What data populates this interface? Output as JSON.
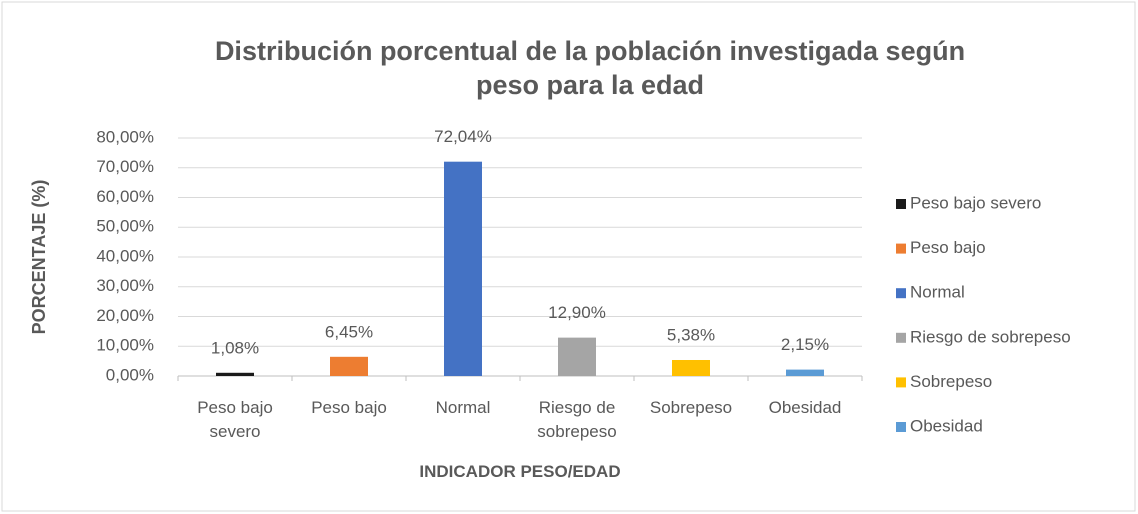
{
  "chart_data": {
    "type": "bar",
    "title": "Distribución porcentual de la población investigada según peso para la edad",
    "xlabel": "INDICADOR PESO/EDAD",
    "ylabel": "PORCENTAJE (%)",
    "categories": [
      "Peso bajo severo",
      "Peso bajo",
      "Normal",
      "Riesgo de sobrepeso",
      "Sobrepeso",
      "Obesidad"
    ],
    "values": [
      1.08,
      6.45,
      72.04,
      12.9,
      5.38,
      2.15
    ],
    "value_labels": [
      "1,08%",
      "6,45%",
      "72,04%",
      "12,90%",
      "5,38%",
      "2,15%"
    ],
    "colors": [
      "#1a1a1a",
      "#ed7d31",
      "#4472c4",
      "#a5a5a5",
      "#ffc000",
      "#5b9bd5"
    ],
    "ylim": [
      0,
      80
    ],
    "yticks": [
      {
        "value": 0,
        "label": "0,00%"
      },
      {
        "value": 10,
        "label": "10,00%"
      },
      {
        "value": 20,
        "label": "20,00%"
      },
      {
        "value": 30,
        "label": "30,00%"
      },
      {
        "value": 40,
        "label": "40,00%"
      },
      {
        "value": 50,
        "label": "50,00%"
      },
      {
        "value": 60,
        "label": "60,00%"
      },
      {
        "value": 70,
        "label": "70,00%"
      },
      {
        "value": 80,
        "label": "80,00%"
      }
    ],
    "grid": true,
    "legend": "right"
  }
}
